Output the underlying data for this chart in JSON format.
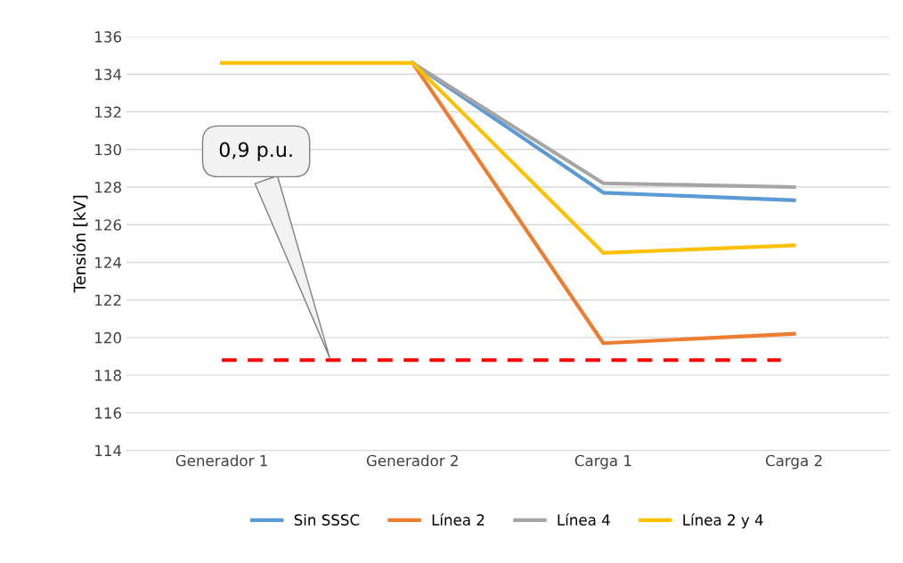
{
  "chart_data": {
    "type": "line",
    "ylabel": "Tensión [kV]",
    "categories": [
      "Generador 1",
      "Generador 2",
      "Carga 1",
      "Carga 2"
    ],
    "series": [
      {
        "name": "Sin SSSC",
        "color": "#5b9bd5",
        "values": [
          null,
          134.6,
          127.7,
          127.3
        ]
      },
      {
        "name": "Línea 2",
        "color": "#ed7d31",
        "values": [
          null,
          134.6,
          119.7,
          120.2
        ]
      },
      {
        "name": "Línea 4",
        "color": "#a5a5a5",
        "values": [
          null,
          134.6,
          128.2,
          128.0
        ]
      },
      {
        "name": "Línea 2 y 4",
        "color": "#ffc000",
        "values": [
          134.6,
          134.6,
          124.5,
          124.9
        ]
      }
    ],
    "ylim": [
      114,
      136
    ],
    "yticks": [
      114,
      116,
      118,
      120,
      122,
      124,
      126,
      128,
      130,
      132,
      134,
      136
    ],
    "ref_lines": [
      {
        "axis": "y",
        "value": 118.8,
        "label": "0,9 p.u.",
        "color": "#ff0000",
        "line_style": "dashed"
      }
    ],
    "grid": "y",
    "legend": "bottom",
    "marker": "none",
    "line_style": "solid"
  }
}
